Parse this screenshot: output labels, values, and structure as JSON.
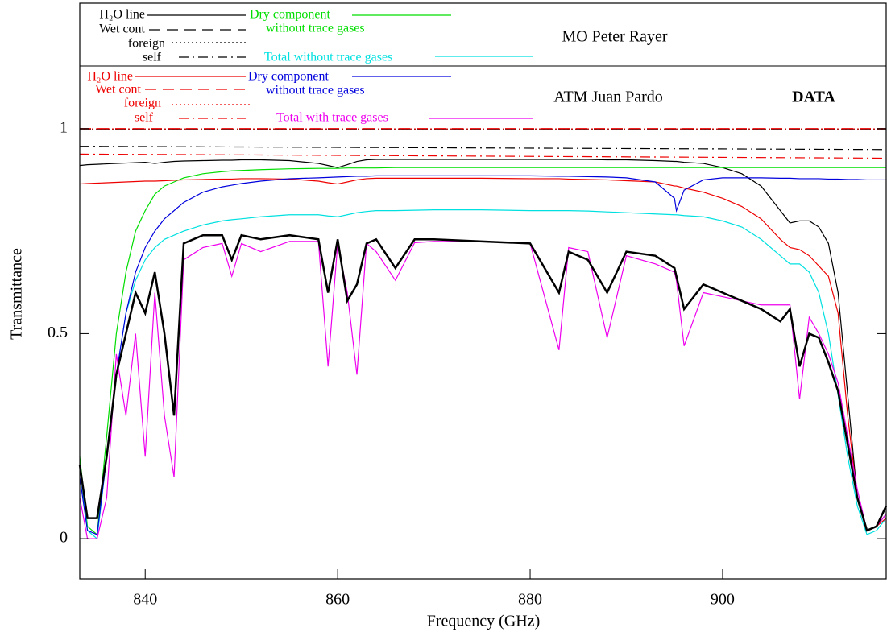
{
  "chart_data": {
    "type": "line",
    "xlabel": "Frequency (GHz)",
    "ylabel": "Transmittance",
    "xlim": [
      833.2,
      917
    ],
    "ylim": [
      -0.1,
      1.3
    ],
    "xticks": [
      840,
      860,
      880,
      900
    ],
    "yticks": [
      0,
      0.5,
      1
    ],
    "panels": [
      {
        "label": "MO Peter Rayer"
      },
      {
        "label": "ATM Juan Pardo"
      }
    ],
    "x": [
      833.2,
      834,
      835,
      836,
      837,
      838,
      839,
      840,
      841,
      842,
      843,
      844,
      846,
      848,
      849,
      850,
      852,
      855,
      858,
      859,
      860,
      861,
      862,
      863,
      864,
      866,
      868,
      870,
      875,
      880,
      883,
      884,
      886,
      888,
      890,
      893,
      895,
      895.2,
      896,
      898,
      900,
      902,
      904,
      906,
      907,
      908,
      909,
      910,
      911,
      912,
      913,
      914,
      915,
      916,
      917
    ],
    "series": [
      {
        "name": "H₂O line",
        "panel": 0,
        "color": "#000000",
        "dash": "solid",
        "values": [
          0.91,
          0.912,
          0.913,
          0.914,
          0.915,
          0.916,
          0.917,
          0.918,
          0.915,
          0.918,
          0.92,
          0.921,
          0.922,
          0.923,
          0.923,
          0.924,
          0.924,
          0.922,
          0.915,
          0.91,
          0.905,
          0.912,
          0.92,
          0.924,
          0.925,
          0.925,
          0.925,
          0.925,
          0.925,
          0.925,
          0.925,
          0.925,
          0.925,
          0.924,
          0.924,
          0.922,
          0.92,
          0.92,
          0.918,
          0.915,
          0.905,
          0.89,
          0.86,
          0.8,
          0.77,
          0.775,
          0.775,
          0.76,
          0.72,
          0.6,
          0.35,
          0.1,
          0.02,
          0.03,
          0.06
        ]
      },
      {
        "name": "Wet cont",
        "panel": 0,
        "color": "#000000",
        "dash": "dashed",
        "x": [
          833.2,
          917
        ],
        "values": [
          0.999,
          0.999
        ]
      },
      {
        "name": "foreign",
        "panel": 0,
        "color": "#000000",
        "dash": "dotted",
        "x": [
          833.2,
          917
        ],
        "values": [
          0.999,
          0.999
        ]
      },
      {
        "name": "self",
        "panel": 0,
        "color": "#000000",
        "dash": "dashdot",
        "x": [
          833.2,
          917
        ],
        "values": [
          0.957,
          0.949
        ]
      },
      {
        "name": "Dry component",
        "subtitle": "without trace gases",
        "panel": 0,
        "color": "#00dd00",
        "dash": "solid",
        "values": [
          0.2,
          0.03,
          0.01,
          0.25,
          0.5,
          0.65,
          0.75,
          0.8,
          0.84,
          0.86,
          0.87,
          0.88,
          0.89,
          0.895,
          0.897,
          0.898,
          0.9,
          0.902,
          0.903,
          0.903,
          0.903,
          0.904,
          0.904,
          0.904,
          0.904,
          0.905,
          0.905,
          0.905,
          0.905,
          0.905,
          0.905,
          0.905,
          0.905,
          0.905,
          0.905,
          0.905,
          0.905,
          0.905,
          0.905,
          0.905,
          0.905,
          0.905,
          0.905,
          0.905,
          0.905,
          0.905,
          0.905,
          0.905,
          0.905,
          0.905,
          0.905,
          0.905,
          0.905,
          0.905,
          0.905
        ]
      },
      {
        "name": "Total without trace gases",
        "panel": 0,
        "color": "#00e0e0",
        "dash": "solid",
        "values": [
          0.18,
          0.02,
          0.0,
          0.2,
          0.4,
          0.55,
          0.63,
          0.68,
          0.71,
          0.73,
          0.74,
          0.75,
          0.765,
          0.775,
          0.778,
          0.78,
          0.785,
          0.79,
          0.79,
          0.787,
          0.785,
          0.79,
          0.795,
          0.798,
          0.8,
          0.8,
          0.801,
          0.802,
          0.802,
          0.8,
          0.8,
          0.8,
          0.799,
          0.797,
          0.795,
          0.792,
          0.79,
          0.79,
          0.788,
          0.785,
          0.775,
          0.76,
          0.73,
          0.69,
          0.67,
          0.67,
          0.65,
          0.6,
          0.5,
          0.35,
          0.2,
          0.08,
          0.01,
          0.02,
          0.05
        ]
      },
      {
        "name": "H₂O line",
        "panel": 1,
        "color": "#ee0000",
        "dash": "solid",
        "values": [
          0.865,
          0.866,
          0.867,
          0.868,
          0.869,
          0.87,
          0.871,
          0.872,
          0.872,
          0.873,
          0.874,
          0.875,
          0.876,
          0.877,
          0.877,
          0.878,
          0.878,
          0.877,
          0.872,
          0.868,
          0.865,
          0.87,
          0.875,
          0.878,
          0.879,
          0.879,
          0.879,
          0.879,
          0.879,
          0.878,
          0.878,
          0.877,
          0.876,
          0.875,
          0.873,
          0.87,
          0.86,
          0.86,
          0.855,
          0.845,
          0.83,
          0.81,
          0.78,
          0.73,
          0.71,
          0.705,
          0.69,
          0.665,
          0.64,
          0.55,
          0.3,
          0.1,
          0.02,
          0.03,
          0.05
        ]
      },
      {
        "name": "Wet cont",
        "panel": 1,
        "color": "#ee0000",
        "dash": "dashed",
        "x": [
          833.2,
          917
        ],
        "values": [
          1.0,
          1.0
        ]
      },
      {
        "name": "foreign",
        "panel": 1,
        "color": "#ee0000",
        "dash": "dotted",
        "x": [
          833.2,
          917
        ],
        "values": [
          0.9995,
          0.9995
        ]
      },
      {
        "name": "self",
        "panel": 1,
        "color": "#ee0000",
        "dash": "dashdot",
        "x": [
          833.2,
          917
        ],
        "values": [
          0.938,
          0.928
        ]
      },
      {
        "name": "Dry component",
        "subtitle": "without trace gases",
        "panel": 1,
        "color": "#0000dd",
        "dash": "solid",
        "values": [
          0.15,
          0.02,
          0.01,
          0.2,
          0.4,
          0.55,
          0.65,
          0.71,
          0.75,
          0.78,
          0.8,
          0.82,
          0.845,
          0.858,
          0.862,
          0.866,
          0.872,
          0.878,
          0.88,
          0.881,
          0.882,
          0.883,
          0.884,
          0.884,
          0.885,
          0.885,
          0.885,
          0.885,
          0.885,
          0.885,
          0.884,
          0.884,
          0.883,
          0.882,
          0.88,
          0.87,
          0.83,
          0.8,
          0.85,
          0.875,
          0.88,
          0.88,
          0.88,
          0.879,
          0.879,
          0.878,
          0.878,
          0.878,
          0.877,
          0.877,
          0.876,
          0.876,
          0.875,
          0.875,
          0.875
        ]
      },
      {
        "name": "Total with trace gases",
        "panel": 1,
        "color": "#ee00ee",
        "dash": "solid",
        "values": [
          0.1,
          0.0,
          0.0,
          0.1,
          0.45,
          0.3,
          0.5,
          0.2,
          0.6,
          0.3,
          0.15,
          0.68,
          0.71,
          0.72,
          0.64,
          0.72,
          0.7,
          0.725,
          0.725,
          0.42,
          0.72,
          0.6,
          0.4,
          0.72,
          0.7,
          0.63,
          0.722,
          0.725,
          0.725,
          0.72,
          0.46,
          0.71,
          0.7,
          0.49,
          0.69,
          0.67,
          0.65,
          0.63,
          0.47,
          0.6,
          0.59,
          0.58,
          0.57,
          0.57,
          0.57,
          0.34,
          0.54,
          0.5,
          0.45,
          0.38,
          0.25,
          0.12,
          0.02,
          0.03,
          0.06
        ]
      },
      {
        "name": "DATA",
        "color": "#000000",
        "dash": "solid",
        "bold": true,
        "values": [
          0.18,
          0.05,
          0.05,
          0.2,
          0.4,
          0.5,
          0.6,
          0.55,
          0.65,
          0.5,
          0.3,
          0.72,
          0.74,
          0.74,
          0.68,
          0.74,
          0.73,
          0.74,
          0.73,
          0.6,
          0.73,
          0.58,
          0.62,
          0.72,
          0.73,
          0.66,
          0.73,
          0.73,
          0.725,
          0.72,
          0.6,
          0.7,
          0.68,
          0.6,
          0.7,
          0.69,
          0.66,
          0.64,
          0.56,
          0.62,
          0.6,
          0.58,
          0.56,
          0.53,
          0.56,
          0.42,
          0.5,
          0.49,
          0.43,
          0.36,
          0.23,
          0.1,
          0.02,
          0.03,
          0.08
        ]
      }
    ]
  }
}
